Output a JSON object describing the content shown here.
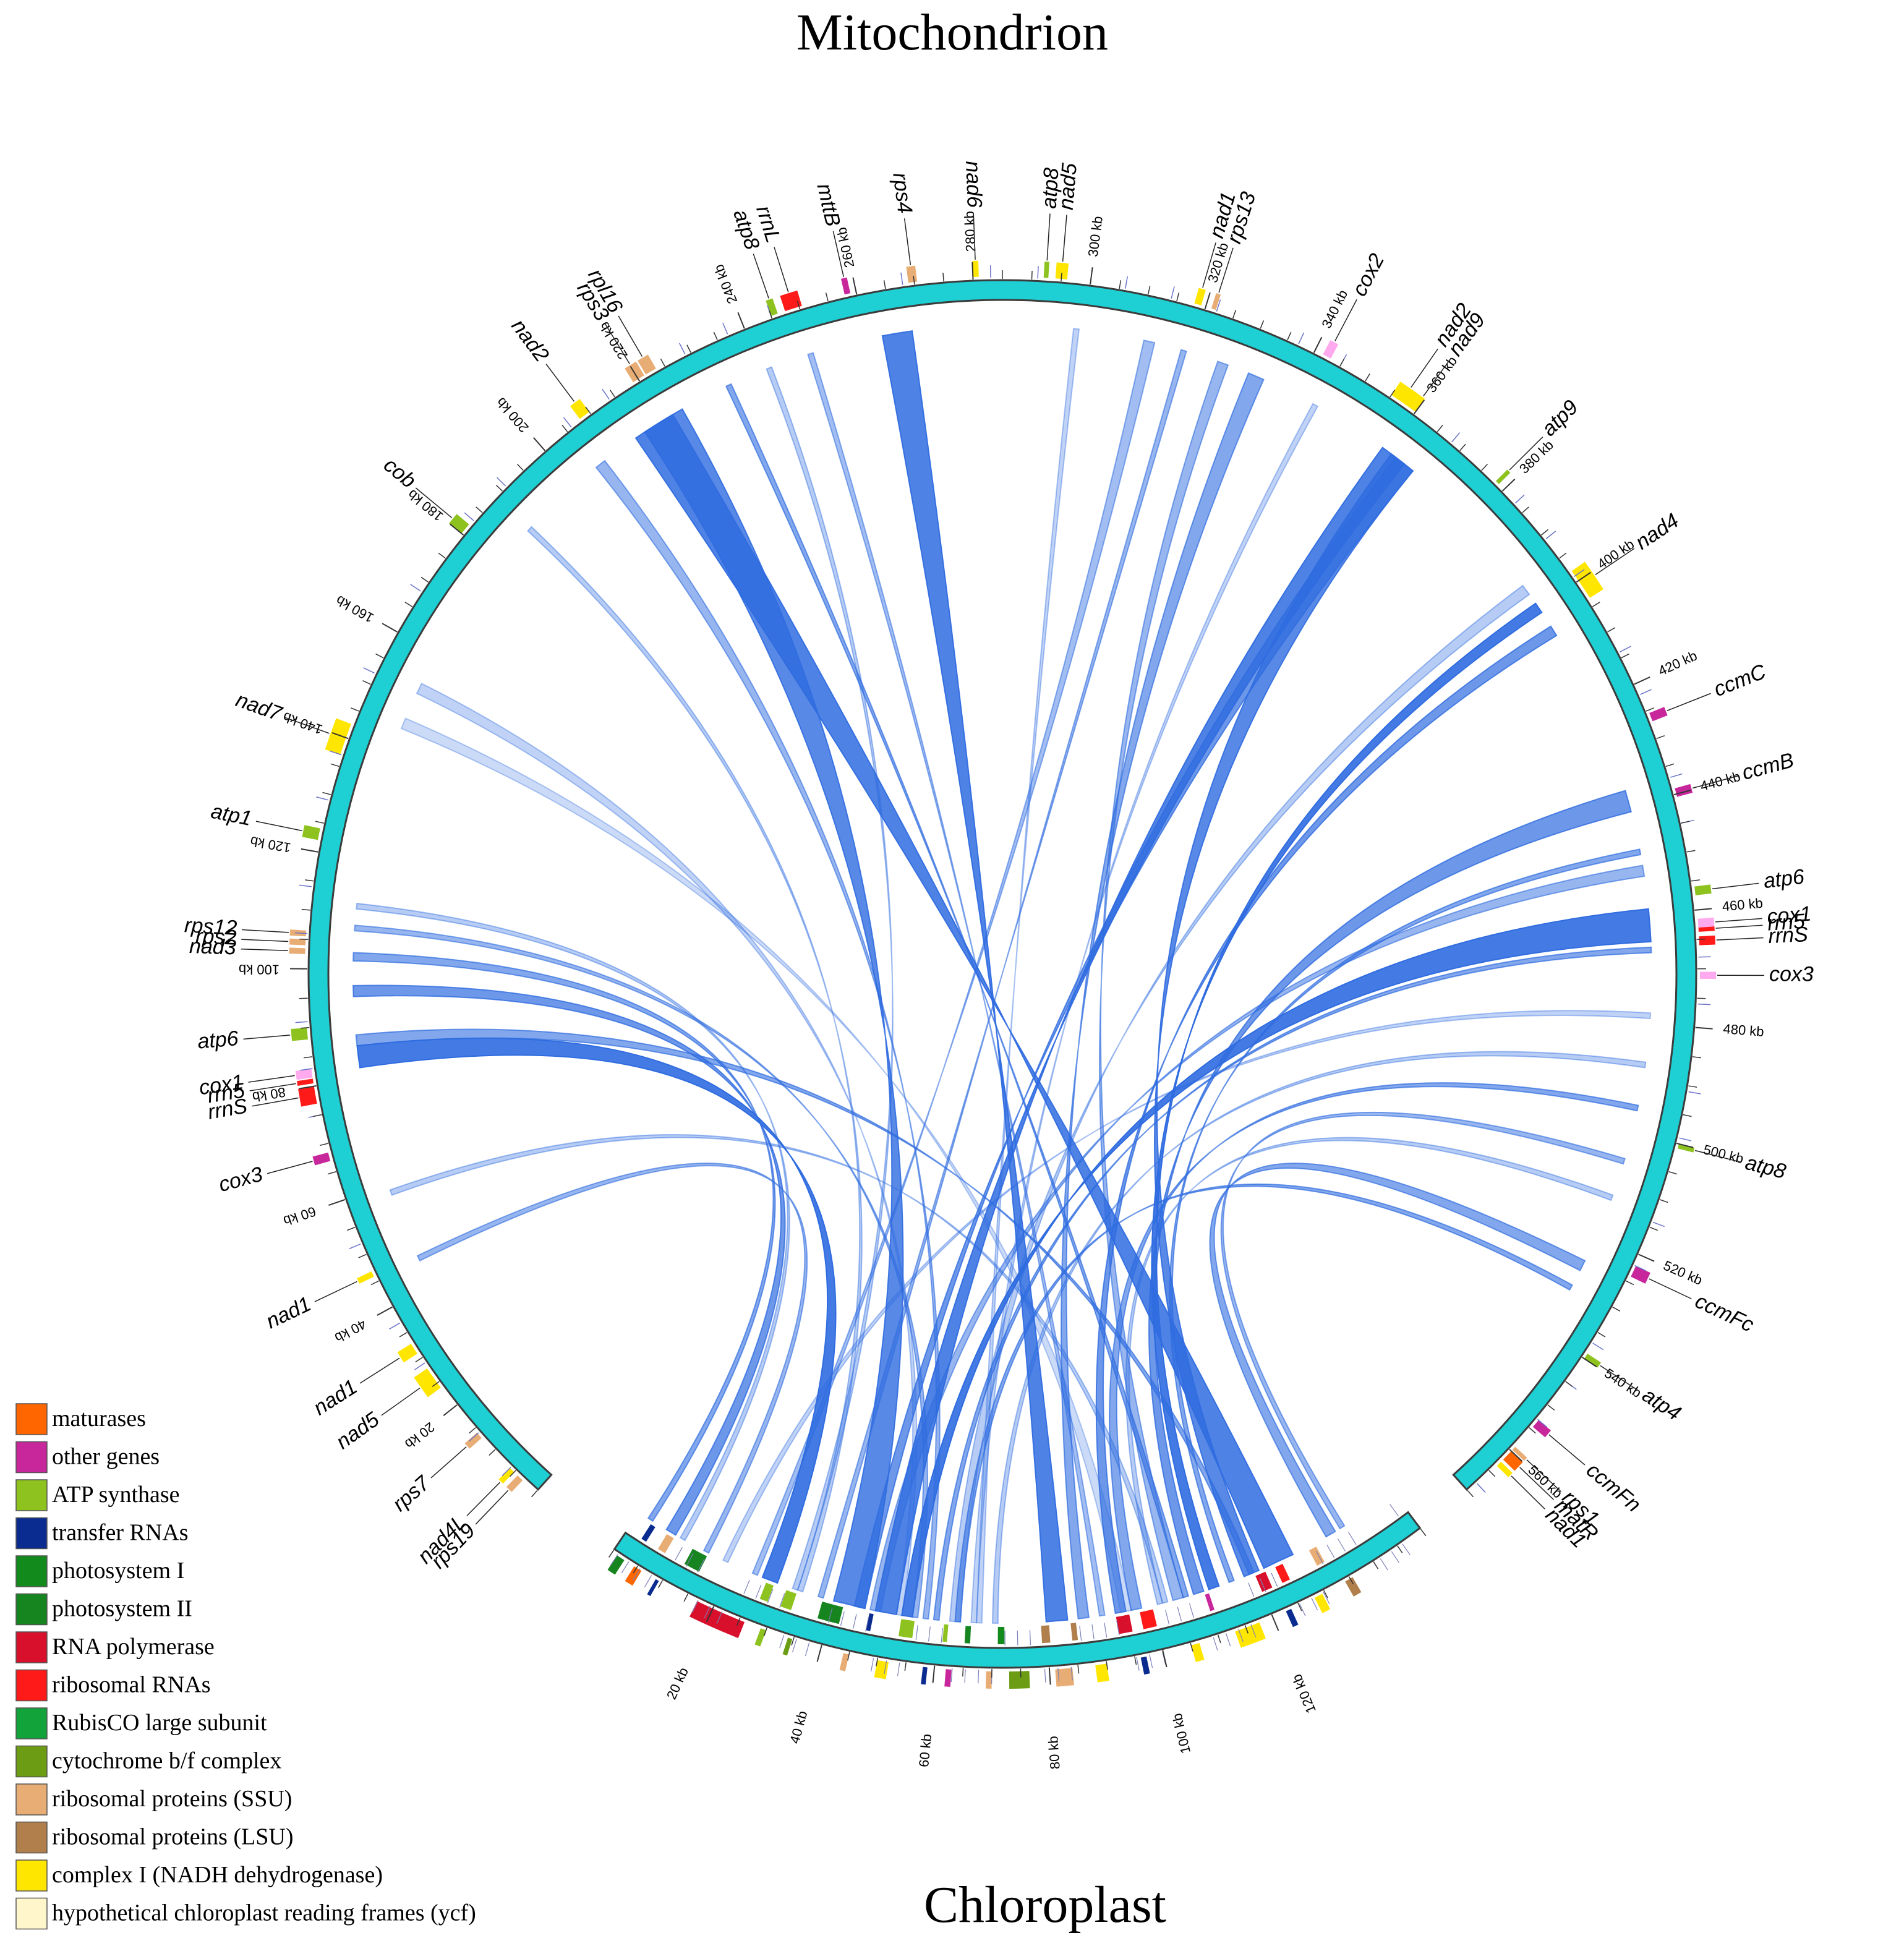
{
  "titles": {
    "top": "Mitochondrion",
    "bottom": "Chloroplast"
  },
  "colors": {
    "ring": "#1ecfd3",
    "ring_stroke": "#3b3b3b",
    "link": "#2f6ce0",
    "maturases": "#ff6600",
    "other": "#c8279c",
    "atp": "#8dc21f",
    "trna": "#0a2b8f",
    "ps1": "#138a1c",
    "ps2": "#16841f",
    "rnapol": "#d8102c",
    "rrna": "#ff1a1a",
    "rubisco": "#12a33a",
    "cytb6f": "#6b9c13",
    "ssu": "#e8ad74",
    "lsu": "#b07f4b",
    "nadh": "#ffe600",
    "ycf": "#fff6cc",
    "cox": "#ffaaee",
    "ccm": "#c8279c"
  },
  "legend": [
    {
      "label": "maturases",
      "color": "#ff6600"
    },
    {
      "label": "other genes",
      "color": "#c8279c"
    },
    {
      "label": "ATP synthase",
      "color": "#8dc21f"
    },
    {
      "label": "transfer RNAs",
      "color": "#0a2b8f"
    },
    {
      "label": "photosystem I",
      "color": "#138a1c"
    },
    {
      "label": "photosystem II",
      "color": "#16841f"
    },
    {
      "label": "RNA polymerase",
      "color": "#d8102c"
    },
    {
      "label": "ribosomal RNAs",
      "color": "#ff1a1a"
    },
    {
      "label": "RubisCO large subunit",
      "color": "#12a33a"
    },
    {
      "label": "cytochrome b/f complex",
      "color": "#6b9c13"
    },
    {
      "label": "ribosomal proteins (SSU)",
      "color": "#e8ad74"
    },
    {
      "label": "ribosomal proteins (LSU)",
      "color": "#b07f4b"
    },
    {
      "label": "complex I (NADH dehydrogenase)",
      "color": "#ffe600"
    },
    {
      "label": "hypothetical chloroplast reading frames (ycf)",
      "color": "#fff6cc"
    }
  ],
  "mito": {
    "length_kb": 570,
    "ticks_kb": [
      20,
      40,
      60,
      80,
      100,
      120,
      140,
      160,
      180,
      200,
      220,
      240,
      260,
      280,
      300,
      320,
      340,
      360,
      380,
      400,
      420,
      440,
      460,
      480,
      500,
      520,
      540,
      560
    ],
    "genes": [
      {
        "name": "rps19",
        "kb": 3,
        "len": 1.2,
        "cat": "ssu"
      },
      {
        "name": "nad4L",
        "kb": 5,
        "len": 1.0,
        "cat": "nadh"
      },
      {
        "name": "rps7",
        "kb": 13,
        "len": 1.2,
        "cat": "ssu"
      },
      {
        "name": "nad5",
        "kb": 24,
        "len": 4.0,
        "cat": "nadh"
      },
      {
        "name": "nad1",
        "kb": 31,
        "len": 2.0,
        "cat": "nadh"
      },
      {
        "name": "nad1",
        "kb": 46,
        "len": 1.0,
        "cat": "nadh"
      },
      {
        "name": "cox3",
        "kb": 67,
        "len": 1.5,
        "cat": "other"
      },
      {
        "name": "rrnS",
        "kb": 77,
        "len": 3.0,
        "cat": "rrna"
      },
      {
        "name": "rrn5",
        "kb": 80.5,
        "len": 0.8,
        "cat": "rrna"
      },
      {
        "name": "cox1",
        "kb": 81.5,
        "len": 1.5,
        "cat": "cox"
      },
      {
        "name": "atp6",
        "kb": 88,
        "len": 2.0,
        "cat": "atp"
      },
      {
        "name": "nad3",
        "kb": 102.5,
        "len": 1.0,
        "cat": "ssu"
      },
      {
        "name": "rps2",
        "kb": 104.0,
        "len": 1.0,
        "cat": "ssu"
      },
      {
        "name": "rps12",
        "kb": 105.5,
        "len": 1.0,
        "cat": "ssu"
      },
      {
        "name": "atp1",
        "kb": 122,
        "len": 2.0,
        "cat": "atp"
      },
      {
        "name": "nad7",
        "kb": 137,
        "len": 5.5,
        "cat": "nadh"
      },
      {
        "name": "cob",
        "kb": 180,
        "len": 2.0,
        "cat": "atp"
      },
      {
        "name": "nad2",
        "kb": 208,
        "len": 2.0,
        "cat": "nadh"
      },
      {
        "name": "rps3",
        "kb": 219,
        "len": 2.2,
        "cat": "ssu"
      },
      {
        "name": "rpl16",
        "kb": 221.5,
        "len": 2.0,
        "cat": "ssu"
      },
      {
        "name": "atp8",
        "kb": 245,
        "len": 1.2,
        "cat": "atp"
      },
      {
        "name": "rrnL",
        "kb": 247.5,
        "len": 3.0,
        "cat": "rrna"
      },
      {
        "name": "mttB",
        "kb": 258,
        "len": 1.0,
        "cat": "other"
      },
      {
        "name": "rps4",
        "kb": 269,
        "len": 1.5,
        "cat": "ssu"
      },
      {
        "name": "nad6",
        "kb": 280,
        "len": 1.0,
        "cat": "nadh"
      },
      {
        "name": "atp8",
        "kb": 292,
        "len": 0.8,
        "cat": "atp"
      },
      {
        "name": "nad5",
        "kb": 294,
        "len": 2.0,
        "cat": "nadh"
      },
      {
        "name": "nad1",
        "kb": 318,
        "len": 1.2,
        "cat": "nadh"
      },
      {
        "name": "rps13",
        "kb": 321,
        "len": 0.8,
        "cat": "ssu"
      },
      {
        "name": "cox2",
        "kb": 341.5,
        "len": 1.5,
        "cat": "cox"
      },
      {
        "name": "nad2",
        "kb": 355,
        "len": 4.0,
        "cat": "nadh"
      },
      {
        "name": "nad9",
        "kb": 359,
        "len": 1.0,
        "cat": "nadh"
      },
      {
        "name": "atp9",
        "kb": 378,
        "len": 0.6,
        "cat": "atp"
      },
      {
        "name": "nad4",
        "kb": 398,
        "len": 5.5,
        "cat": "nadh"
      },
      {
        "name": "ccmC",
        "kb": 425.5,
        "len": 1.5,
        "cat": "ccm"
      },
      {
        "name": "ccmB",
        "kb": 439,
        "len": 1.5,
        "cat": "ccm"
      },
      {
        "name": "atp6",
        "kb": 456,
        "len": 1.5,
        "cat": "atp"
      },
      {
        "name": "cox1",
        "kb": 461.5,
        "len": 1.5,
        "cat": "cox"
      },
      {
        "name": "rrn5",
        "kb": 463,
        "len": 0.6,
        "cat": "rrna"
      },
      {
        "name": "rrnS",
        "kb": 464.5,
        "len": 1.5,
        "cat": "rrna"
      },
      {
        "name": "cox3",
        "kb": 470.5,
        "len": 1.2,
        "cat": "cox"
      },
      {
        "name": "atp8",
        "kb": 500,
        "len": 0.8,
        "cat": "atp"
      },
      {
        "name": "ccmFc",
        "kb": 522,
        "len": 2.0,
        "cat": "ccm"
      },
      {
        "name": "atp4",
        "kb": 539,
        "len": 1.0,
        "cat": "atp"
      },
      {
        "name": "ccmFn",
        "kb": 553,
        "len": 1.5,
        "cat": "ccm"
      },
      {
        "name": "rps1",
        "kb": 559,
        "len": 0.6,
        "cat": "ssu"
      },
      {
        "name": "matR",
        "kb": 560,
        "len": 2.0,
        "cat": "maturases"
      },
      {
        "name": "nad1",
        "kb": 562.5,
        "len": 1.0,
        "cat": "nadh"
      }
    ]
  },
  "cp": {
    "length_kb": 150,
    "ticks_kb": [
      20,
      40,
      60,
      80,
      100,
      120
    ],
    "genes": [
      {
        "kb": 1,
        "len": 1.5,
        "cat": "ps2"
      },
      {
        "kb": 3,
        "len": 1.0,
        "cat": "trna"
      },
      {
        "kb": 4.5,
        "len": 1.5,
        "cat": "maturases"
      },
      {
        "kb": 6.5,
        "len": 1.5,
        "cat": "ssu"
      },
      {
        "kb": 9,
        "len": 0.5,
        "cat": "trna"
      },
      {
        "kb": 12,
        "len": 3.0,
        "cat": "ps2"
      },
      {
        "kb": 17,
        "len": 9.0,
        "cat": "rnapol"
      },
      {
        "kb": 27,
        "len": 1.5,
        "cat": "atp"
      },
      {
        "kb": 29,
        "len": 1.0,
        "cat": "atp"
      },
      {
        "kb": 31,
        "len": 2.0,
        "cat": "atp"
      },
      {
        "kb": 34,
        "len": 0.8,
        "cat": "cytb6f"
      },
      {
        "kb": 38,
        "len": 4.0,
        "cat": "ps2"
      },
      {
        "kb": 44,
        "len": 1.0,
        "cat": "ssu"
      },
      {
        "kb": 47,
        "len": 0.8,
        "cat": "trna"
      },
      {
        "kb": 50,
        "len": 2.0,
        "cat": "nadh"
      },
      {
        "kb": 53,
        "len": 2.5,
        "cat": "atp"
      },
      {
        "kb": 58,
        "len": 0.8,
        "cat": "trna"
      },
      {
        "kb": 61,
        "len": 0.8,
        "cat": "atp"
      },
      {
        "kb": 62,
        "len": 1.0,
        "cat": "other"
      },
      {
        "kb": 65,
        "len": 1.0,
        "cat": "ps2"
      },
      {
        "kb": 69,
        "len": 1.0,
        "cat": "ssu"
      },
      {
        "kb": 71,
        "len": 1.2,
        "cat": "ps1"
      },
      {
        "kb": 73,
        "len": 3.5,
        "cat": "cytb6f"
      },
      {
        "kb": 79,
        "len": 1.5,
        "cat": "lsu"
      },
      {
        "kb": 81,
        "len": 3.0,
        "cat": "ssu"
      },
      {
        "kb": 84.5,
        "len": 1.0,
        "cat": "lsu"
      },
      {
        "kb": 88,
        "len": 2.0,
        "cat": "nadh"
      },
      {
        "kb": 93,
        "len": 2.5,
        "cat": "rnapol"
      },
      {
        "kb": 96,
        "len": 1.0,
        "cat": "trna"
      },
      {
        "kb": 97.5,
        "len": 2.5,
        "cat": "rrna"
      },
      {
        "kb": 105,
        "len": 1.5,
        "cat": "nadh"
      },
      {
        "kb": 110,
        "len": 0.8,
        "cat": "other"
      },
      {
        "kb": 113,
        "len": 4.5,
        "cat": "nadh"
      },
      {
        "kb": 120,
        "len": 2.0,
        "cat": "rnapol"
      },
      {
        "kb": 122.5,
        "len": 1.0,
        "cat": "trna"
      },
      {
        "kb": 124,
        "len": 1.5,
        "cat": "rrna"
      },
      {
        "kb": 128,
        "len": 1.5,
        "cat": "nadh"
      },
      {
        "kb": 131,
        "len": 1.5,
        "cat": "ssu"
      },
      {
        "kb": 134,
        "len": 1.5,
        "cat": "lsu"
      }
    ]
  },
  "links": [
    {
      "m": [
        263,
        268.5
      ],
      "c": [
        80,
        84
      ],
      "w": 0.85
    },
    {
      "m": [
        214,
        222
      ],
      "c": [
        122,
        128
      ],
      "w": 0.85
    },
    {
      "m": [
        216,
        224
      ],
      "c": [
        40,
        46
      ],
      "w": 0.8
    },
    {
      "m": [
        359,
        364
      ],
      "c": [
        48,
        52
      ],
      "w": 0.85
    },
    {
      "m": [
        361,
        366
      ],
      "c": [
        118,
        121
      ],
      "w": 0.8
    },
    {
      "m": [
        362,
        366
      ],
      "c": [
        44,
        46
      ],
      "w": 0.7
    },
    {
      "m": [
        399,
        401
      ],
      "c": [
        111,
        113
      ],
      "w": 0.9
    },
    {
      "m": [
        459,
        465
      ],
      "c": [
        53,
        55
      ],
      "w": 0.9
    },
    {
      "m": [
        82,
        86
      ],
      "c": [
        26,
        29
      ],
      "w": 0.9
    },
    {
      "m": [
        95,
        97
      ],
      "c": [
        6,
        8
      ],
      "w": 0.7
    },
    {
      "m": [
        101.5,
        103
      ],
      "c": [
        2,
        3
      ],
      "w": 0.6
    },
    {
      "m": [
        107,
        108
      ],
      "c": [
        55,
        56
      ],
      "w": 0.5
    },
    {
      "m": [
        145,
        147
      ],
      "c": [
        94,
        96
      ],
      "w": 0.25
    },
    {
      "m": [
        233,
        234
      ],
      "c": [
        106,
        107
      ],
      "w": 0.6
    },
    {
      "m": [
        249,
        250
      ],
      "c": [
        90,
        91
      ],
      "w": 0.45
    },
    {
      "m": [
        298,
        299
      ],
      "c": [
        67,
        68
      ],
      "w": 0.3
    },
    {
      "m": [
        325,
        327
      ],
      "c": [
        104,
        106
      ],
      "w": 0.5
    },
    {
      "m": [
        331,
        334
      ],
      "c": [
        86,
        88
      ],
      "w": 0.6
    },
    {
      "m": [
        395,
        397
      ],
      "c": [
        62,
        64
      ],
      "w": 0.35
    },
    {
      "m": [
        404,
        406
      ],
      "c": [
        93,
        95
      ],
      "w": 0.7
    },
    {
      "m": [
        437,
        441
      ],
      "c": [
        108,
        110
      ],
      "w": 0.7
    },
    {
      "m": [
        451,
        453
      ],
      "c": [
        47,
        49
      ],
      "w": 0.5
    },
    {
      "m": [
        448,
        449
      ],
      "c": [
        115,
        116
      ],
      "w": 0.6
    },
    {
      "m": [
        466,
        467
      ],
      "c": [
        59,
        60
      ],
      "w": 0.6
    },
    {
      "m": [
        487,
        488
      ],
      "c": [
        70,
        71
      ],
      "w": 0.35
    },
    {
      "m": [
        495,
        496
      ],
      "c": [
        96,
        98
      ],
      "w": 0.6
    },
    {
      "m": [
        512,
        513
      ],
      "c": [
        101,
        102
      ],
      "w": 0.35
    },
    {
      "m": [
        525,
        527
      ],
      "c": [
        135,
        137
      ],
      "w": 0.6
    },
    {
      "m": [
        530,
        531
      ],
      "c": [
        63,
        64
      ],
      "w": 0.6
    },
    {
      "m": [
        152,
        154
      ],
      "c": [
        52,
        53
      ],
      "w": 0.3
    },
    {
      "m": [
        188,
        189
      ],
      "c": [
        33,
        34
      ],
      "w": 0.35
    },
    {
      "m": [
        205,
        207
      ],
      "c": [
        57,
        58
      ],
      "w": 0.5
    },
    {
      "m": [
        241,
        242
      ],
      "c": [
        32,
        33
      ],
      "w": 0.35
    },
    {
      "m": [
        311,
        313
      ],
      "c": [
        24,
        25
      ],
      "w": 0.45
    },
    {
      "m": [
        318,
        319
      ],
      "c": [
        37,
        38
      ],
      "w": 0.5
    },
    {
      "m": [
        344,
        345
      ],
      "c": [
        66,
        67
      ],
      "w": 0.3
    },
    {
      "m": [
        45,
        46
      ],
      "c": [
        14,
        15
      ],
      "w": 0.5
    },
    {
      "m": [
        58,
        59
      ],
      "c": [
        102,
        103
      ],
      "w": 0.35
    },
    {
      "m": [
        86,
        88
      ],
      "c": [
        119,
        120
      ],
      "w": 0.6
    },
    {
      "m": [
        111,
        112
      ],
      "c": [
        9,
        10
      ],
      "w": 0.35
    },
    {
      "m": [
        478,
        479
      ],
      "c": [
        18,
        19
      ],
      "w": 0.3
    },
    {
      "m": [
        505,
        506
      ],
      "c": [
        138,
        139
      ],
      "w": 0.5
    }
  ]
}
